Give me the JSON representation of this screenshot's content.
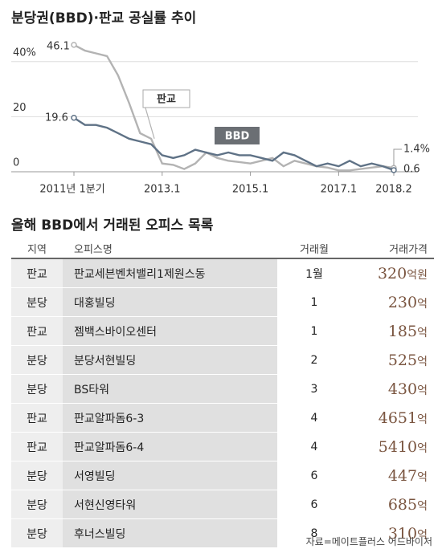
{
  "chart_data": {
    "type": "line",
    "title": "분당권(BBD)·판교 공실률 추이",
    "categories": [
      "2011년 1분기",
      null,
      null,
      null,
      null,
      null,
      null,
      null,
      "2013.1",
      null,
      null,
      null,
      null,
      null,
      null,
      null,
      "2015.1",
      null,
      null,
      null,
      null,
      null,
      null,
      null,
      "2017.1",
      null,
      null,
      null,
      null,
      "2018.2"
    ],
    "series": [
      {
        "name": "판교",
        "color": "#b3b3b3",
        "values": [
          46.1,
          44,
          43,
          42,
          35,
          25,
          14,
          12,
          3,
          2.5,
          1,
          3,
          7,
          5,
          4,
          3.5,
          3,
          4,
          5,
          2,
          4,
          3,
          2,
          1.5,
          0.5,
          0.5,
          1,
          1.5,
          2,
          1.4
        ]
      },
      {
        "name": "BBD",
        "color": "#5f7286",
        "values": [
          19.6,
          17,
          17,
          16,
          14,
          12,
          11,
          10,
          6,
          5,
          6,
          8,
          7,
          6,
          7,
          6,
          6,
          5,
          4,
          7,
          6,
          4,
          2,
          3,
          2,
          4,
          2,
          3,
          2,
          0.6
        ]
      }
    ],
    "annotations": [
      "46.1",
      "19.6",
      "1.4%",
      "0.6"
    ],
    "ylim": [
      0,
      48
    ],
    "yticks": [
      {
        "value": 40,
        "label": "40%"
      },
      20,
      0
    ],
    "grid": true
  },
  "table": {
    "title": "올해 BBD에서 거래된 오피스 목록",
    "headers": [
      "지역",
      "오피스명",
      "거래월",
      "거래가격"
    ],
    "rows": [
      [
        "판교",
        "판교세븐벤처밸리1제원스동",
        "1월",
        "320",
        "억원"
      ],
      [
        "분당",
        "대홍빌딩",
        "1",
        "230",
        "억"
      ],
      [
        "판교",
        "젬백스바이오센터",
        "1",
        "185",
        "억"
      ],
      [
        "분당",
        "분당서현빌딩",
        "2",
        "525",
        "억"
      ],
      [
        "분당",
        "BS타워",
        "3",
        "430",
        "억"
      ],
      [
        "판교",
        "판교알파돔6-3",
        "4",
        "4651",
        "억"
      ],
      [
        "판교",
        "판교알파돔6-4",
        "4",
        "5410",
        "억"
      ],
      [
        "분당",
        "서영빌딩",
        "6",
        "447",
        "억"
      ],
      [
        "분당",
        "서현신영타워",
        "6",
        "685",
        "억"
      ],
      [
        "분당",
        "후너스빌딩",
        "8",
        "310",
        "억"
      ]
    ],
    "source": "자료=메이트플러스 어드바이저"
  }
}
